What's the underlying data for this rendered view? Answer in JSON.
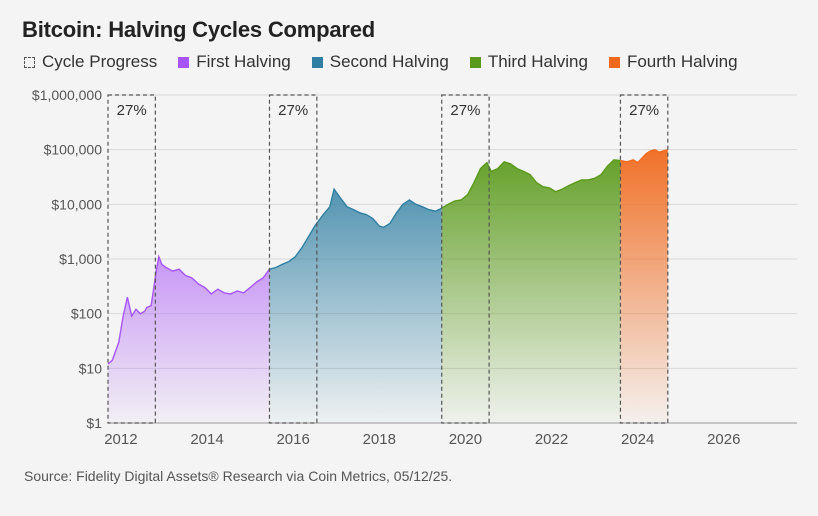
{
  "chart_data": {
    "type": "area",
    "title": "Bitcoin: Halving Cycles Compared",
    "source": "Source: Fidelity Digital Assets® Research via Coin Metrics, 05/12/25.",
    "y_scale": "log",
    "ylim": [
      1,
      1000000
    ],
    "y_ticks": [
      1,
      10,
      100,
      1000,
      10000,
      100000,
      1000000
    ],
    "y_tick_labels": [
      "$1",
      "$10",
      "$100",
      "$1,000",
      "$10,000",
      "$100,000",
      "$1,000,000"
    ],
    "xlim": [
      2011.7,
      2027.7
    ],
    "x_ticks": [
      2012,
      2014,
      2016,
      2018,
      2020,
      2022,
      2024,
      2026
    ],
    "x_tick_labels": [
      "2012",
      "2014",
      "2016",
      "2018",
      "2020",
      "2022",
      "2024",
      "2026"
    ],
    "grid": "horizontal",
    "legend_position": "top-left",
    "cycle_progress": {
      "label": "Cycle Progress",
      "windows": [
        {
          "start": 2011.7,
          "end": 2012.8,
          "label": "27%"
        },
        {
          "start": 2015.45,
          "end": 2016.55,
          "label": "27%"
        },
        {
          "start": 2019.45,
          "end": 2020.55,
          "label": "27%"
        },
        {
          "start": 2023.6,
          "end": 2024.7,
          "label": "27%"
        }
      ]
    },
    "series": [
      {
        "name": "First Halving",
        "color": "#a855f7",
        "points": [
          [
            2011.7,
            12
          ],
          [
            2011.8,
            14
          ],
          [
            2011.95,
            30
          ],
          [
            2012.05,
            90
          ],
          [
            2012.15,
            200
          ],
          [
            2012.25,
            90
          ],
          [
            2012.35,
            120
          ],
          [
            2012.45,
            100
          ],
          [
            2012.55,
            110
          ],
          [
            2012.6,
            130
          ],
          [
            2012.7,
            140
          ],
          [
            2012.75,
            250
          ],
          [
            2012.82,
            600
          ],
          [
            2012.88,
            1100
          ],
          [
            2012.95,
            800
          ],
          [
            2013.05,
            700
          ],
          [
            2013.2,
            600
          ],
          [
            2013.35,
            650
          ],
          [
            2013.5,
            500
          ],
          [
            2013.65,
            450
          ],
          [
            2013.8,
            350
          ],
          [
            2013.95,
            300
          ],
          [
            2014.1,
            230
          ],
          [
            2014.25,
            280
          ],
          [
            2014.4,
            240
          ],
          [
            2014.55,
            230
          ],
          [
            2014.7,
            260
          ],
          [
            2014.85,
            240
          ],
          [
            2015.0,
            300
          ],
          [
            2015.15,
            380
          ],
          [
            2015.3,
            450
          ],
          [
            2015.45,
            650
          ]
        ]
      },
      {
        "name": "Second Halving",
        "color": "#2f7fa3",
        "points": [
          [
            2015.45,
            650
          ],
          [
            2015.6,
            700
          ],
          [
            2015.75,
            800
          ],
          [
            2015.9,
            900
          ],
          [
            2016.05,
            1100
          ],
          [
            2016.2,
            1600
          ],
          [
            2016.35,
            2500
          ],
          [
            2016.5,
            4000
          ],
          [
            2016.7,
            6500
          ],
          [
            2016.85,
            9000
          ],
          [
            2016.95,
            19000
          ],
          [
            2017.1,
            13000
          ],
          [
            2017.25,
            9000
          ],
          [
            2017.4,
            8000
          ],
          [
            2017.55,
            7000
          ],
          [
            2017.7,
            6500
          ],
          [
            2017.85,
            5500
          ],
          [
            2018.0,
            4000
          ],
          [
            2018.1,
            3800
          ],
          [
            2018.25,
            4500
          ],
          [
            2018.4,
            7000
          ],
          [
            2018.55,
            10000
          ],
          [
            2018.7,
            12000
          ],
          [
            2018.85,
            10000
          ],
          [
            2019.0,
            9000
          ],
          [
            2019.15,
            8000
          ],
          [
            2019.3,
            7500
          ],
          [
            2019.45,
            8500
          ]
        ]
      },
      {
        "name": "Third Halving",
        "color": "#5a9a1a",
        "points": [
          [
            2019.45,
            8500
          ],
          [
            2019.6,
            10000
          ],
          [
            2019.75,
            11500
          ],
          [
            2019.9,
            12000
          ],
          [
            2020.05,
            15000
          ],
          [
            2020.2,
            25000
          ],
          [
            2020.35,
            45000
          ],
          [
            2020.5,
            58000
          ],
          [
            2020.6,
            40000
          ],
          [
            2020.75,
            45000
          ],
          [
            2020.9,
            60000
          ],
          [
            2021.05,
            55000
          ],
          [
            2021.2,
            45000
          ],
          [
            2021.35,
            40000
          ],
          [
            2021.5,
            35000
          ],
          [
            2021.65,
            25000
          ],
          [
            2021.8,
            21000
          ],
          [
            2021.95,
            20000
          ],
          [
            2022.1,
            17000
          ],
          [
            2022.25,
            19000
          ],
          [
            2022.4,
            22000
          ],
          [
            2022.55,
            25000
          ],
          [
            2022.7,
            28000
          ],
          [
            2022.85,
            28000
          ],
          [
            2023.0,
            30000
          ],
          [
            2023.15,
            35000
          ],
          [
            2023.3,
            50000
          ],
          [
            2023.45,
            65000
          ],
          [
            2023.6,
            63000
          ]
        ]
      },
      {
        "name": "Fourth Halving",
        "color": "#f06a1e",
        "points": [
          [
            2023.6,
            63000
          ],
          [
            2023.75,
            60000
          ],
          [
            2023.9,
            65000
          ],
          [
            2024.0,
            58000
          ],
          [
            2024.1,
            70000
          ],
          [
            2024.2,
            85000
          ],
          [
            2024.3,
            95000
          ],
          [
            2024.4,
            100000
          ],
          [
            2024.5,
            90000
          ],
          [
            2024.6,
            95000
          ],
          [
            2024.7,
            100000
          ]
        ]
      }
    ]
  }
}
